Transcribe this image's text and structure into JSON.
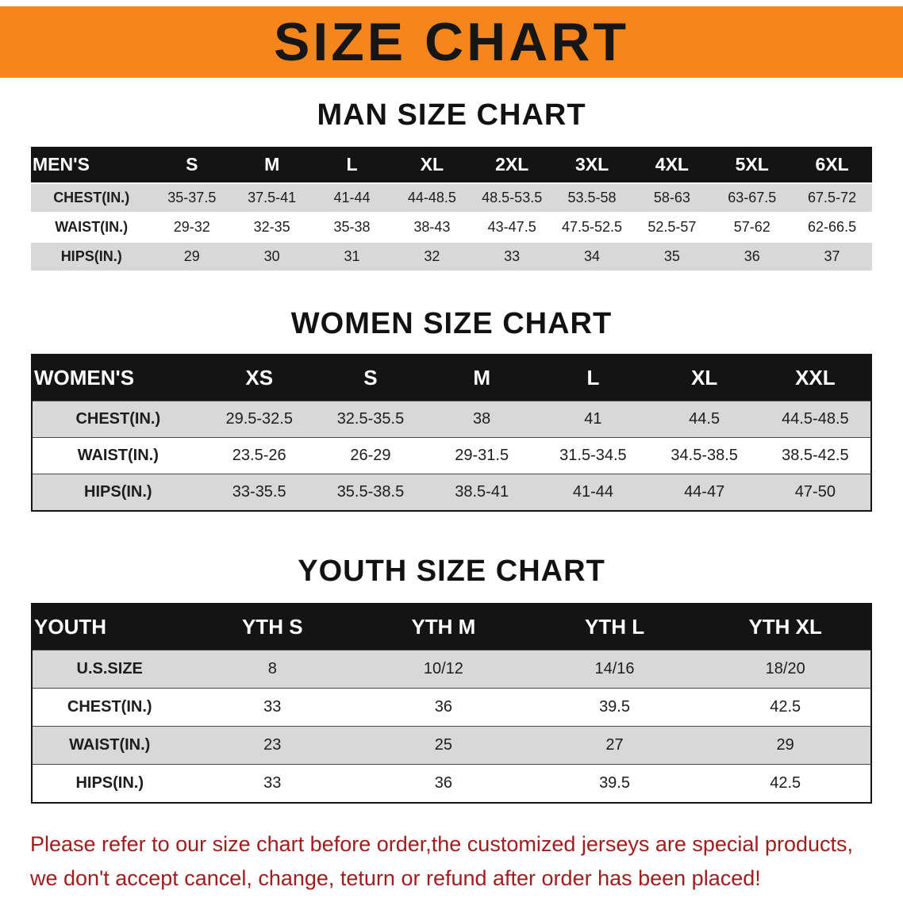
{
  "banner": {
    "title": "SIZE CHART",
    "bg_color": "#f6861c",
    "text_color": "#161616"
  },
  "sections": [
    {
      "title": "MAN SIZE CHART",
      "header": [
        "MEN'S",
        "S",
        "M",
        "L",
        "XL",
        "2XL",
        "3XL",
        "4XL",
        "5XL",
        "6XL"
      ],
      "rows": [
        [
          "CHEST(IN.)",
          "35-37.5",
          "37.5-41",
          "41-44",
          "44-48.5",
          "48.5-53.5",
          "53.5-58",
          "58-63",
          "63-67.5",
          "67.5-72"
        ],
        [
          "WAIST(IN.)",
          "29-32",
          "32-35",
          "35-38",
          "38-43",
          "43-47.5",
          "47.5-52.5",
          "52.5-57",
          "57-62",
          "62-66.5"
        ],
        [
          "HIPS(IN.)",
          "29",
          "30",
          "31",
          "32",
          "33",
          "34",
          "35",
          "36",
          "37"
        ]
      ]
    },
    {
      "title": "WOMEN SIZE CHART",
      "header": [
        "WOMEN'S",
        "XS",
        "S",
        "M",
        "L",
        "XL",
        "XXL"
      ],
      "rows": [
        [
          "CHEST(IN.)",
          "29.5-32.5",
          "32.5-35.5",
          "38",
          "41",
          "44.5",
          "44.5-48.5"
        ],
        [
          "WAIST(IN.)",
          "23.5-26",
          "26-29",
          "29-31.5",
          "31.5-34.5",
          "34.5-38.5",
          "38.5-42.5"
        ],
        [
          "HIPS(IN.)",
          "33-35.5",
          "35.5-38.5",
          "38.5-41",
          "41-44",
          "44-47",
          "47-50"
        ]
      ]
    },
    {
      "title": "YOUTH SIZE CHART",
      "header": [
        "YOUTH",
        "YTH S",
        "YTH M",
        "YTH L",
        "YTH XL"
      ],
      "rows": [
        [
          "U.S.SIZE",
          "8",
          "10/12",
          "14/16",
          "18/20"
        ],
        [
          "CHEST(IN.)",
          "33",
          "36",
          "39.5",
          "42.5"
        ],
        [
          "WAIST(IN.)",
          "23",
          "25",
          "27",
          "29"
        ],
        [
          "HIPS(IN.)",
          "33",
          "36",
          "39.5",
          "42.5"
        ]
      ]
    }
  ],
  "footer": {
    "lines": [
      "Please refer to our size chart before order,the customized jerseys are special products,",
      "we don't accept cancel, change, teturn or refund after order has been placed!"
    ],
    "text_color": "#a11c1c"
  }
}
